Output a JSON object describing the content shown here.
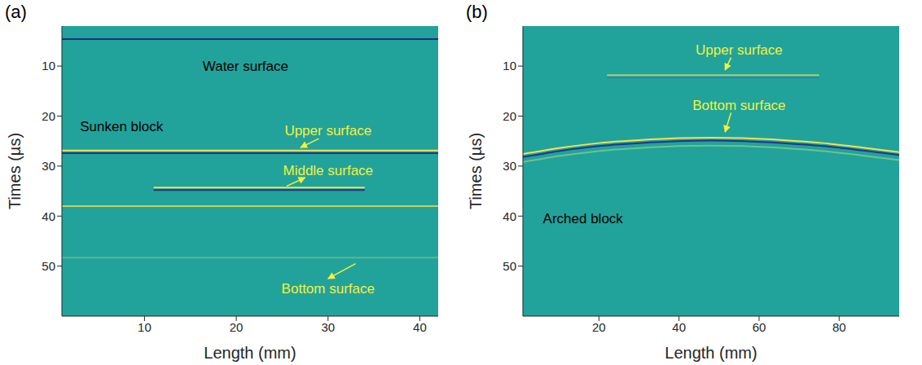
{
  "chart_data": [
    {
      "type": "bscan",
      "title": "(a)",
      "xlabel": "Length (mm)",
      "ylabel": "Times (µs)",
      "xlim": [
        1,
        42
      ],
      "xticks": [
        10,
        20,
        30,
        40
      ],
      "ylim": [
        2,
        60
      ],
      "yticks": [
        10,
        20,
        30,
        40,
        50
      ],
      "grid": false,
      "color": "#21a39b",
      "series": [
        {
          "color": "#1f2a8c",
          "x": [
            1,
            42
          ],
          "values": [
            4.6,
            4.6
          ]
        },
        {
          "color": "#f2e34b",
          "x": [
            1,
            42
          ],
          "values": [
            26.9,
            26.9
          ]
        },
        {
          "color": "#27318f",
          "x": [
            1,
            42
          ],
          "values": [
            27.4,
            27.4
          ]
        },
        {
          "color": "#f2e34b",
          "x": [
            11,
            34
          ],
          "values": [
            34.3,
            34.3
          ]
        },
        {
          "color": "#27318f",
          "x": [
            11,
            34
          ],
          "values": [
            34.8,
            34.8
          ]
        },
        {
          "color": "#c8cf5a",
          "x": [
            1,
            42
          ],
          "values": [
            38,
            38
          ]
        },
        {
          "color": "#58b98a",
          "x": [
            1,
            42
          ],
          "values": [
            48.3,
            48.3
          ]
        }
      ],
      "annotations": [
        {
          "text": "Water surface",
          "x": 21,
          "y": 10,
          "color": "#000000"
        },
        {
          "text": "Sunken block",
          "x": 7.5,
          "y": 22,
          "color": "#000000"
        },
        {
          "text": "Upper surface",
          "x": 30,
          "y": 22.8,
          "color": "#f5f03c",
          "arrow_from": [
            29,
            24.5
          ],
          "arrow_to": [
            27,
            26.3
          ]
        },
        {
          "text": "Middle surface",
          "x": 30,
          "y": 30.8,
          "color": "#f5f03c",
          "arrow_from": [
            25.5,
            34
          ],
          "arrow_to": [
            27.5,
            32.3
          ]
        },
        {
          "text": "Bottom surface",
          "x": 30,
          "y": 54.5,
          "color": "#f5f03c",
          "arrow_from": [
            33,
            49.5
          ],
          "arrow_to": [
            30,
            52.5
          ]
        }
      ]
    },
    {
      "type": "bscan",
      "title": "(b)",
      "xlabel": "Length (mm)",
      "ylabel": "Times (µs)",
      "xlim": [
        1,
        95
      ],
      "xticks": [
        20,
        40,
        60,
        80
      ],
      "ylim": [
        2,
        60
      ],
      "yticks": [
        10,
        20,
        30,
        40,
        50
      ],
      "grid": false,
      "color": "#21a39b",
      "series": [
        {
          "color": "#9fd66a",
          "x": [
            22,
            75
          ],
          "values": [
            11.8,
            11.8
          ]
        },
        {
          "color": "#3f7fa8",
          "x": [
            22,
            75
          ],
          "values": [
            12.3,
            12.3
          ]
        },
        {
          "color": "#f2e34b",
          "x": [
            1,
            10,
            20,
            30,
            40,
            48,
            56,
            66,
            76,
            86,
            95
          ],
          "values": [
            27.6,
            26.4,
            25.4,
            24.8,
            24.4,
            24.3,
            24.4,
            24.8,
            25.4,
            26.3,
            27.2
          ]
        },
        {
          "color": "#27318f",
          "x": [
            1,
            10,
            20,
            30,
            40,
            48,
            56,
            66,
            76,
            86,
            95
          ],
          "values": [
            28.2,
            27.0,
            26.0,
            25.4,
            25.0,
            24.9,
            25.0,
            25.4,
            26.0,
            26.9,
            27.8
          ]
        },
        {
          "color": "#6cc48a",
          "x": [
            1,
            10,
            20,
            30,
            40,
            48,
            56,
            66,
            76,
            86,
            95
          ],
          "values": [
            29.2,
            28.0,
            27.0,
            26.4,
            26.0,
            25.9,
            26.0,
            26.4,
            27.0,
            27.9,
            28.8
          ]
        }
      ],
      "annotations": [
        {
          "text": "Upper surface",
          "x": 55,
          "y": 6.8,
          "color": "#f5f03c",
          "arrow_from": [
            53,
            8.3
          ],
          "arrow_to": [
            51.5,
            10.8
          ]
        },
        {
          "text": "Bottom surface",
          "x": 55,
          "y": 17.8,
          "color": "#f5f03c",
          "arrow_from": [
            53,
            19.3
          ],
          "arrow_to": [
            51.5,
            23.2
          ]
        },
        {
          "text": "Arched block",
          "x": 16,
          "y": 40.5,
          "color": "#000000"
        }
      ]
    }
  ]
}
